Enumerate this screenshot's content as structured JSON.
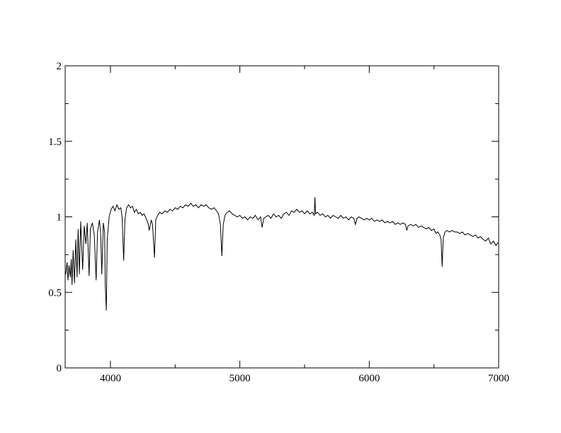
{
  "chart_data": {
    "type": "line",
    "title": "",
    "xlabel": "",
    "ylabel": "",
    "xlim": [
      3650,
      7000
    ],
    "ylim": [
      0,
      2
    ],
    "x_major_ticks": [
      4000,
      5000,
      6000,
      7000
    ],
    "x_tick_labels": [
      "4000",
      "5000",
      "6000",
      "7000"
    ],
    "x_minor_ticks": [
      4500,
      5500,
      6500
    ],
    "y_major_ticks": [
      0,
      0.5,
      1,
      1.5,
      2
    ],
    "y_tick_labels": [
      "0",
      "0.5",
      "1",
      "1.5",
      "2"
    ],
    "y_minor_ticks": [
      0.25,
      0.75,
      1.25,
      1.75
    ],
    "grid": false,
    "legend": "none",
    "line_color": "#000000",
    "series": [
      {
        "points": [
          [
            3655,
            0.62
          ],
          [
            3665,
            0.7
          ],
          [
            3672,
            0.58
          ],
          [
            3680,
            0.68
          ],
          [
            3690,
            0.6
          ],
          [
            3697,
            0.72
          ],
          [
            3703,
            0.55
          ],
          [
            3712,
            0.78
          ],
          [
            3722,
            0.56
          ],
          [
            3732,
            0.85
          ],
          [
            3742,
            0.6
          ],
          [
            3750,
            0.92
          ],
          [
            3760,
            0.62
          ],
          [
            3770,
            0.97
          ],
          [
            3785,
            0.65
          ],
          [
            3797,
            0.94
          ],
          [
            3810,
            0.82
          ],
          [
            3820,
            0.96
          ],
          [
            3835,
            0.61
          ],
          [
            3845,
            0.92
          ],
          [
            3860,
            0.96
          ],
          [
            3875,
            0.88
          ],
          [
            3889,
            0.58
          ],
          [
            3900,
            0.9
          ],
          [
            3915,
            0.98
          ],
          [
            3925,
            0.88
          ],
          [
            3933,
            0.62
          ],
          [
            3945,
            0.96
          ],
          [
            3955,
            0.9
          ],
          [
            3960,
            0.55
          ],
          [
            3968,
            0.38
          ],
          [
            3975,
            0.85
          ],
          [
            3990,
            1.0
          ],
          [
            4005,
            1.05
          ],
          [
            4020,
            1.07
          ],
          [
            4035,
            1.04
          ],
          [
            4050,
            1.08
          ],
          [
            4065,
            1.05
          ],
          [
            4080,
            1.06
          ],
          [
            4090,
            1.0
          ],
          [
            4102,
            0.71
          ],
          [
            4112,
            0.98
          ],
          [
            4125,
            1.06
          ],
          [
            4140,
            1.08
          ],
          [
            4155,
            1.06
          ],
          [
            4170,
            1.07
          ],
          [
            4185,
            1.03
          ],
          [
            4200,
            1.05
          ],
          [
            4215,
            1.02
          ],
          [
            4230,
            1.03
          ],
          [
            4245,
            1.01
          ],
          [
            4260,
            1.02
          ],
          [
            4275,
            0.99
          ],
          [
            4290,
            0.96
          ],
          [
            4300,
            0.91
          ],
          [
            4315,
            0.98
          ],
          [
            4325,
            0.95
          ],
          [
            4340,
            0.73
          ],
          [
            4350,
            0.98
          ],
          [
            4365,
            1.01
          ],
          [
            4380,
            1.03
          ],
          [
            4400,
            1.02
          ],
          [
            4420,
            1.04
          ],
          [
            4440,
            1.03
          ],
          [
            4460,
            1.05
          ],
          [
            4480,
            1.04
          ],
          [
            4500,
            1.06
          ],
          [
            4520,
            1.05
          ],
          [
            4540,
            1.07
          ],
          [
            4560,
            1.06
          ],
          [
            4580,
            1.08
          ],
          [
            4600,
            1.07
          ],
          [
            4620,
            1.09
          ],
          [
            4640,
            1.07
          ],
          [
            4660,
            1.08
          ],
          [
            4680,
            1.06
          ],
          [
            4700,
            1.08
          ],
          [
            4720,
            1.07
          ],
          [
            4740,
            1.08
          ],
          [
            4760,
            1.06
          ],
          [
            4780,
            1.05
          ],
          [
            4800,
            1.06
          ],
          [
            4820,
            1.04
          ],
          [
            4835,
            1.02
          ],
          [
            4850,
            0.95
          ],
          [
            4861,
            0.74
          ],
          [
            4872,
            0.95
          ],
          [
            4885,
            1.01
          ],
          [
            4900,
            1.03
          ],
          [
            4920,
            1.04
          ],
          [
            4940,
            1.02
          ],
          [
            4960,
            1.01
          ],
          [
            4980,
            1.0
          ],
          [
            5000,
            1.01
          ],
          [
            5020,
            0.99
          ],
          [
            5040,
            1.0
          ],
          [
            5060,
            0.98
          ],
          [
            5080,
            1.0
          ],
          [
            5100,
            0.99
          ],
          [
            5120,
            1.01
          ],
          [
            5140,
            0.98
          ],
          [
            5160,
            1.0
          ],
          [
            5172,
            0.93
          ],
          [
            5185,
            0.99
          ],
          [
            5200,
            1.0
          ],
          [
            5220,
            1.01
          ],
          [
            5240,
            0.99
          ],
          [
            5260,
            1.02
          ],
          [
            5280,
            1.0
          ],
          [
            5300,
            1.01
          ],
          [
            5320,
            0.99
          ],
          [
            5340,
            1.02
          ],
          [
            5360,
            1.03
          ],
          [
            5380,
            1.01
          ],
          [
            5400,
            1.04
          ],
          [
            5420,
            1.03
          ],
          [
            5440,
            1.05
          ],
          [
            5460,
            1.03
          ],
          [
            5480,
            1.04
          ],
          [
            5500,
            1.02
          ],
          [
            5520,
            1.04
          ],
          [
            5540,
            1.02
          ],
          [
            5560,
            1.03
          ],
          [
            5575,
            1.01
          ],
          [
            5580,
            1.13
          ],
          [
            5585,
            1.02
          ],
          [
            5600,
            1.03
          ],
          [
            5620,
            1.01
          ],
          [
            5640,
            1.02
          ],
          [
            5660,
            1.0
          ],
          [
            5680,
            1.01
          ],
          [
            5700,
            0.99
          ],
          [
            5720,
            1.01
          ],
          [
            5740,
            1.0
          ],
          [
            5760,
            0.99
          ],
          [
            5780,
            1.01
          ],
          [
            5800,
            0.99
          ],
          [
            5820,
            1.0
          ],
          [
            5840,
            0.98
          ],
          [
            5860,
            1.0
          ],
          [
            5880,
            0.99
          ],
          [
            5893,
            0.95
          ],
          [
            5905,
            0.99
          ],
          [
            5920,
            1.0
          ],
          [
            5940,
            0.99
          ],
          [
            5960,
            0.98
          ],
          [
            5980,
            0.99
          ],
          [
            6000,
            0.98
          ],
          [
            6020,
            0.99
          ],
          [
            6040,
            0.97
          ],
          [
            6060,
            0.98
          ],
          [
            6080,
            0.97
          ],
          [
            6100,
            0.98
          ],
          [
            6120,
            0.96
          ],
          [
            6140,
            0.97
          ],
          [
            6160,
            0.96
          ],
          [
            6180,
            0.97
          ],
          [
            6200,
            0.95
          ],
          [
            6220,
            0.96
          ],
          [
            6240,
            0.95
          ],
          [
            6260,
            0.96
          ],
          [
            6280,
            0.95
          ],
          [
            6290,
            0.91
          ],
          [
            6300,
            0.94
          ],
          [
            6320,
            0.95
          ],
          [
            6340,
            0.94
          ],
          [
            6360,
            0.95
          ],
          [
            6380,
            0.93
          ],
          [
            6400,
            0.94
          ],
          [
            6420,
            0.93
          ],
          [
            6440,
            0.92
          ],
          [
            6460,
            0.93
          ],
          [
            6480,
            0.91
          ],
          [
            6500,
            0.92
          ],
          [
            6515,
            0.89
          ],
          [
            6530,
            0.9
          ],
          [
            6545,
            0.88
          ],
          [
            6555,
            0.85
          ],
          [
            6563,
            0.67
          ],
          [
            6572,
            0.86
          ],
          [
            6585,
            0.9
          ],
          [
            6600,
            0.91
          ],
          [
            6620,
            0.9
          ],
          [
            6640,
            0.91
          ],
          [
            6660,
            0.9
          ],
          [
            6680,
            0.9
          ],
          [
            6700,
            0.89
          ],
          [
            6720,
            0.9
          ],
          [
            6740,
            0.88
          ],
          [
            6760,
            0.89
          ],
          [
            6780,
            0.88
          ],
          [
            6800,
            0.87
          ],
          [
            6820,
            0.88
          ],
          [
            6840,
            0.86
          ],
          [
            6860,
            0.87
          ],
          [
            6880,
            0.85
          ],
          [
            6900,
            0.84
          ],
          [
            6920,
            0.86
          ],
          [
            6940,
            0.82
          ],
          [
            6960,
            0.84
          ],
          [
            6980,
            0.81
          ],
          [
            6995,
            0.83
          ]
        ]
      }
    ]
  }
}
